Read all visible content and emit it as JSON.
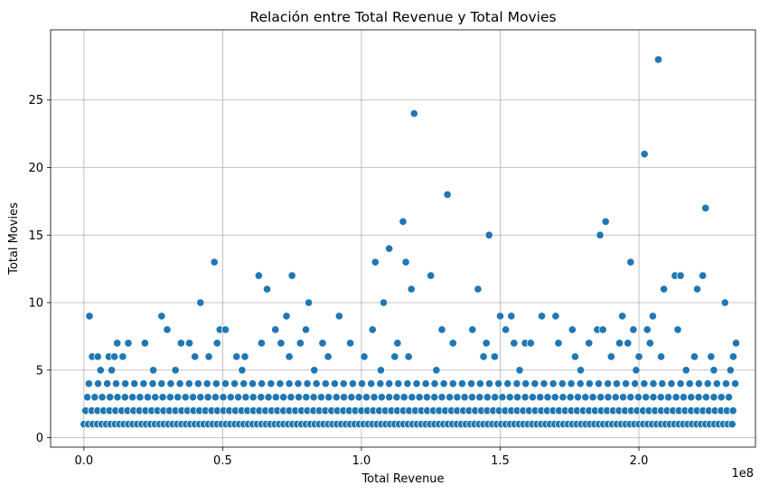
{
  "chart_data": {
    "type": "scatter",
    "title": "Relación entre Total Revenue y Total Movies",
    "xlabel": "Total Revenue",
    "ylabel": "Total Movies",
    "x_offset_label": "1e8",
    "xlim": [
      -0.12,
      2.42
    ],
    "ylim": [
      -0.7,
      30.2
    ],
    "x_ticks": [
      0,
      0.5,
      1.0,
      1.5,
      2.0
    ],
    "x_tick_labels": [
      "0.0",
      "0.5",
      "1.0",
      "1.5",
      "2.0"
    ],
    "y_ticks": [
      0,
      5,
      10,
      15,
      20,
      25
    ],
    "y_tick_labels": [
      "0",
      "5",
      "10",
      "15",
      "20",
      "25"
    ],
    "grid": true,
    "marker_color": "#1f77b4",
    "x_unit_scale": 100000000,
    "base_levels": [
      1,
      2,
      3,
      4
    ],
    "base_x_range": [
      0.0,
      2.35
    ],
    "base_x_step": 0.016,
    "points": [
      {
        "x": 0.02,
        "y": 9
      },
      {
        "x": 0.03,
        "y": 6
      },
      {
        "x": 0.05,
        "y": 6
      },
      {
        "x": 0.06,
        "y": 5
      },
      {
        "x": 0.09,
        "y": 6
      },
      {
        "x": 0.11,
        "y": 6
      },
      {
        "x": 0.12,
        "y": 7
      },
      {
        "x": 0.14,
        "y": 6
      },
      {
        "x": 0.16,
        "y": 7
      },
      {
        "x": 0.22,
        "y": 7
      },
      {
        "x": 0.25,
        "y": 5
      },
      {
        "x": 0.28,
        "y": 9
      },
      {
        "x": 0.3,
        "y": 8
      },
      {
        "x": 0.35,
        "y": 7
      },
      {
        "x": 0.38,
        "y": 7
      },
      {
        "x": 0.4,
        "y": 6
      },
      {
        "x": 0.42,
        "y": 10
      },
      {
        "x": 0.45,
        "y": 6
      },
      {
        "x": 0.47,
        "y": 13
      },
      {
        "x": 0.48,
        "y": 7
      },
      {
        "x": 0.49,
        "y": 8
      },
      {
        "x": 0.51,
        "y": 8
      },
      {
        "x": 0.55,
        "y": 6
      },
      {
        "x": 0.58,
        "y": 6
      },
      {
        "x": 0.63,
        "y": 12
      },
      {
        "x": 0.64,
        "y": 7
      },
      {
        "x": 0.66,
        "y": 11
      },
      {
        "x": 0.69,
        "y": 8
      },
      {
        "x": 0.71,
        "y": 7
      },
      {
        "x": 0.73,
        "y": 9
      },
      {
        "x": 0.74,
        "y": 6
      },
      {
        "x": 0.75,
        "y": 12
      },
      {
        "x": 0.78,
        "y": 7
      },
      {
        "x": 0.8,
        "y": 8
      },
      {
        "x": 0.81,
        "y": 10
      },
      {
        "x": 0.86,
        "y": 7
      },
      {
        "x": 0.88,
        "y": 6
      },
      {
        "x": 0.92,
        "y": 9
      },
      {
        "x": 0.96,
        "y": 7
      },
      {
        "x": 1.01,
        "y": 6
      },
      {
        "x": 1.04,
        "y": 8
      },
      {
        "x": 1.05,
        "y": 13
      },
      {
        "x": 1.08,
        "y": 10
      },
      {
        "x": 1.1,
        "y": 14
      },
      {
        "x": 1.12,
        "y": 6
      },
      {
        "x": 1.13,
        "y": 7
      },
      {
        "x": 1.15,
        "y": 16
      },
      {
        "x": 1.16,
        "y": 13
      },
      {
        "x": 1.17,
        "y": 6
      },
      {
        "x": 1.18,
        "y": 11
      },
      {
        "x": 1.19,
        "y": 24
      },
      {
        "x": 1.25,
        "y": 12
      },
      {
        "x": 1.29,
        "y": 8
      },
      {
        "x": 1.31,
        "y": 18
      },
      {
        "x": 1.33,
        "y": 7
      },
      {
        "x": 1.4,
        "y": 8
      },
      {
        "x": 1.42,
        "y": 11
      },
      {
        "x": 1.44,
        "y": 6
      },
      {
        "x": 1.45,
        "y": 7
      },
      {
        "x": 1.46,
        "y": 15
      },
      {
        "x": 1.48,
        "y": 6
      },
      {
        "x": 1.5,
        "y": 9
      },
      {
        "x": 1.52,
        "y": 8
      },
      {
        "x": 1.54,
        "y": 9
      },
      {
        "x": 1.55,
        "y": 7
      },
      {
        "x": 1.59,
        "y": 7
      },
      {
        "x": 1.61,
        "y": 7
      },
      {
        "x": 1.65,
        "y": 9
      },
      {
        "x": 1.7,
        "y": 9
      },
      {
        "x": 1.71,
        "y": 7
      },
      {
        "x": 1.76,
        "y": 8
      },
      {
        "x": 1.77,
        "y": 6
      },
      {
        "x": 1.82,
        "y": 7
      },
      {
        "x": 1.85,
        "y": 8
      },
      {
        "x": 1.86,
        "y": 15
      },
      {
        "x": 1.87,
        "y": 8
      },
      {
        "x": 1.88,
        "y": 16
      },
      {
        "x": 1.9,
        "y": 6
      },
      {
        "x": 1.93,
        "y": 7
      },
      {
        "x": 1.94,
        "y": 9
      },
      {
        "x": 1.96,
        "y": 7
      },
      {
        "x": 1.97,
        "y": 13
      },
      {
        "x": 1.98,
        "y": 8
      },
      {
        "x": 2.0,
        "y": 6
      },
      {
        "x": 2.02,
        "y": 21
      },
      {
        "x": 2.03,
        "y": 8
      },
      {
        "x": 2.04,
        "y": 7
      },
      {
        "x": 2.05,
        "y": 9
      },
      {
        "x": 2.07,
        "y": 28
      },
      {
        "x": 2.08,
        "y": 6
      },
      {
        "x": 2.09,
        "y": 11
      },
      {
        "x": 2.13,
        "y": 12
      },
      {
        "x": 2.14,
        "y": 8
      },
      {
        "x": 2.15,
        "y": 12
      },
      {
        "x": 2.2,
        "y": 6
      },
      {
        "x": 2.21,
        "y": 11
      },
      {
        "x": 2.23,
        "y": 12
      },
      {
        "x": 2.24,
        "y": 17
      },
      {
        "x": 2.26,
        "y": 6
      },
      {
        "x": 2.31,
        "y": 10
      },
      {
        "x": 2.34,
        "y": 6
      },
      {
        "x": 2.35,
        "y": 7
      },
      {
        "x": 0.1,
        "y": 5
      },
      {
        "x": 0.33,
        "y": 5
      },
      {
        "x": 0.57,
        "y": 5
      },
      {
        "x": 0.83,
        "y": 5
      },
      {
        "x": 1.07,
        "y": 5
      },
      {
        "x": 1.27,
        "y": 5
      },
      {
        "x": 1.57,
        "y": 5
      },
      {
        "x": 1.79,
        "y": 5
      },
      {
        "x": 1.99,
        "y": 5
      },
      {
        "x": 2.17,
        "y": 5
      },
      {
        "x": 2.27,
        "y": 5
      },
      {
        "x": 2.33,
        "y": 5
      }
    ]
  }
}
